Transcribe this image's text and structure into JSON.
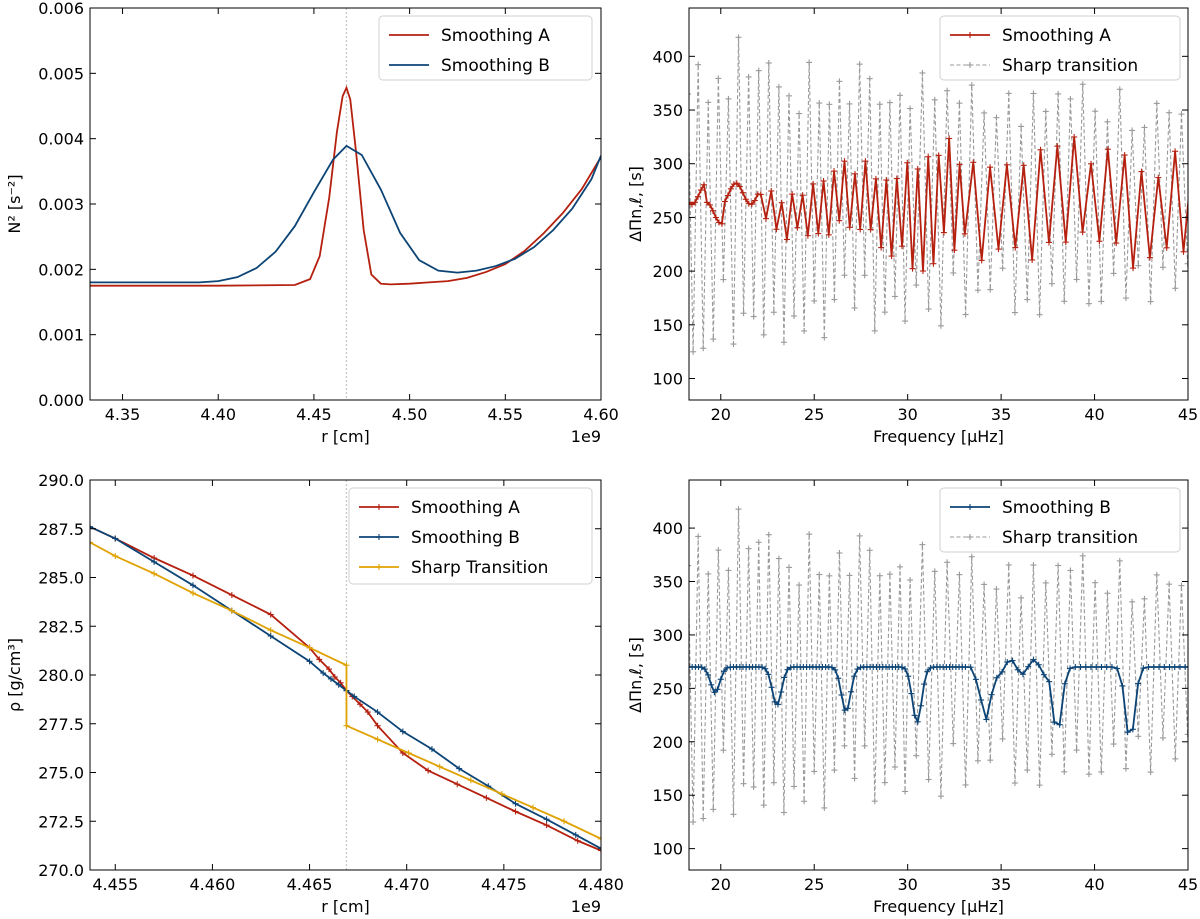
{
  "chart_data": [
    {
      "id": "p1",
      "type": "line",
      "xlabel": "r [cm]",
      "ylabel": "N² [s⁻²]",
      "x_offset_label": "1e9",
      "xlim": [
        4.333,
        4.6
      ],
      "ylim": [
        0,
        0.006
      ],
      "xticks": [
        "4.35",
        "4.40",
        "4.45",
        "4.50",
        "4.55",
        "4.60"
      ],
      "xtick_values": [
        4.35,
        4.4,
        4.45,
        4.5,
        4.55,
        4.6
      ],
      "yticks": [
        "0.000",
        "0.001",
        "0.002",
        "0.003",
        "0.004",
        "0.005",
        "0.006"
      ],
      "ytick_values": [
        0,
        0.001,
        0.002,
        0.003,
        0.004,
        0.005,
        0.006
      ],
      "vline": 4.467,
      "legend": "top-right",
      "series": [
        {
          "name": "Smoothing A",
          "color": "#b5200f",
          "markers": false,
          "x": [
            4.333,
            4.4,
            4.44,
            4.448,
            4.453,
            4.458,
            4.462,
            4.465,
            4.467,
            4.469,
            4.472,
            4.476,
            4.48,
            4.485,
            4.49,
            4.5,
            4.51,
            4.52,
            4.53,
            4.54,
            4.55,
            4.56,
            4.57,
            4.58,
            4.59,
            4.6
          ],
          "y": [
            0.00175,
            0.00175,
            0.00176,
            0.00185,
            0.0022,
            0.0031,
            0.0041,
            0.00465,
            0.00478,
            0.0046,
            0.0038,
            0.0026,
            0.00192,
            0.00178,
            0.00177,
            0.00178,
            0.0018,
            0.00182,
            0.00187,
            0.00196,
            0.00208,
            0.00228,
            0.00255,
            0.00286,
            0.00323,
            0.00372
          ]
        },
        {
          "name": "Smoothing B",
          "color": "#0c4476",
          "markers": false,
          "x": [
            4.333,
            4.39,
            4.4,
            4.41,
            4.42,
            4.43,
            4.44,
            4.45,
            4.46,
            4.467,
            4.475,
            4.485,
            4.495,
            4.505,
            4.515,
            4.525,
            4.535,
            4.545,
            4.555,
            4.565,
            4.575,
            4.585,
            4.595,
            4.6
          ],
          "y": [
            0.0018,
            0.0018,
            0.00182,
            0.00188,
            0.00202,
            0.00227,
            0.00266,
            0.00318,
            0.00368,
            0.00389,
            0.00375,
            0.00322,
            0.00256,
            0.00214,
            0.00198,
            0.00195,
            0.00198,
            0.00205,
            0.00216,
            0.00234,
            0.0026,
            0.00293,
            0.00338,
            0.00374
          ]
        }
      ]
    },
    {
      "id": "p2",
      "type": "line",
      "xlabel": "Frequency [μHz]",
      "ylabel": "ΔΠn,ℓ, [s]",
      "xlim": [
        18.3,
        45
      ],
      "ylim": [
        80,
        445
      ],
      "xticks": [
        "20",
        "25",
        "30",
        "35",
        "40",
        "45"
      ],
      "xtick_values": [
        20,
        25,
        30,
        35,
        40,
        45
      ],
      "yticks": [
        "100",
        "150",
        "200",
        "250",
        "300",
        "350",
        "400"
      ],
      "ytick_values": [
        100,
        150,
        200,
        250,
        300,
        350,
        400
      ],
      "legend": "top-right",
      "series": [
        {
          "name": "Smoothing A",
          "color": "#b5200f",
          "markers": true,
          "style": "solid",
          "model": "A"
        },
        {
          "name": "Sharp transition",
          "color": "#999999",
          "markers": true,
          "style": "dashed",
          "model": "sharp"
        }
      ]
    },
    {
      "id": "p3",
      "type": "line",
      "xlabel": "r [cm]",
      "ylabel": "ρ [g/cm³]",
      "x_offset_label": "1e9",
      "xlim": [
        4.4537,
        4.48
      ],
      "ylim": [
        270,
        290
      ],
      "xticks": [
        "4.455",
        "4.460",
        "4.465",
        "4.470",
        "4.475",
        "4.480"
      ],
      "xtick_values": [
        4.455,
        4.46,
        4.465,
        4.47,
        4.475,
        4.48
      ],
      "yticks": [
        "270.0",
        "272.5",
        "275.0",
        "277.5",
        "280.0",
        "282.5",
        "285.0",
        "287.5",
        "290.0"
      ],
      "ytick_values": [
        270,
        272.5,
        275,
        277.5,
        280,
        282.5,
        285,
        287.5,
        290
      ],
      "vline": 4.4669,
      "legend": "top-right",
      "series": [
        {
          "name": "Smoothing A",
          "color": "#b5200f",
          "markers": true,
          "x": [
            4.4537,
            4.455,
            4.457,
            4.459,
            4.461,
            4.463,
            4.465,
            4.4655,
            4.466,
            4.4663,
            4.4666,
            4.4669,
            4.4672,
            4.4676,
            4.468,
            4.4685,
            4.4698,
            4.4711,
            4.4726,
            4.4741,
            4.4756,
            4.4772,
            4.4788,
            4.48
          ],
          "y": [
            287.6,
            287.0,
            286.0,
            285.1,
            284.1,
            283.1,
            281.4,
            280.8,
            280.3,
            279.9,
            279.6,
            279.2,
            278.9,
            278.5,
            278.1,
            277.4,
            276.0,
            275.1,
            274.4,
            273.7,
            273.0,
            272.3,
            271.5,
            271.0
          ]
        },
        {
          "name": "Smoothing B",
          "color": "#0c4476",
          "markers": true,
          "x": [
            4.4537,
            4.455,
            4.457,
            4.459,
            4.461,
            4.463,
            4.465,
            4.4657,
            4.4661,
            4.4665,
            4.4669,
            4.4673,
            4.4685,
            4.4698,
            4.4713,
            4.4727,
            4.4742,
            4.4756,
            4.4772,
            4.4787,
            4.48
          ],
          "y": [
            287.6,
            287.0,
            285.8,
            284.6,
            283.3,
            282.0,
            280.7,
            280.1,
            279.8,
            279.5,
            279.2,
            278.9,
            278.1,
            277.1,
            276.2,
            275.2,
            274.3,
            273.4,
            272.6,
            271.8,
            271.1
          ]
        },
        {
          "name": "Sharp Transition",
          "color": "#e0a200",
          "markers": true,
          "x": [
            4.4537,
            4.455,
            4.457,
            4.459,
            4.461,
            4.463,
            4.465,
            4.4669,
            4.4669,
            4.4685,
            4.4701,
            4.4717,
            4.4733,
            4.4749,
            4.4765,
            4.4781,
            4.48
          ],
          "y": [
            286.8,
            286.1,
            285.2,
            284.2,
            283.3,
            282.3,
            281.4,
            280.5,
            277.4,
            276.7,
            276.0,
            275.3,
            274.6,
            273.9,
            273.2,
            272.5,
            271.6
          ]
        }
      ]
    },
    {
      "id": "p4",
      "type": "line",
      "xlabel": "Frequency [μHz]",
      "ylabel": "ΔΠn,ℓ, [s]",
      "xlim": [
        18.3,
        45
      ],
      "ylim": [
        80,
        445
      ],
      "xticks": [
        "20",
        "25",
        "30",
        "35",
        "40",
        "45"
      ],
      "xtick_values": [
        20,
        25,
        30,
        35,
        40,
        45
      ],
      "yticks": [
        "100",
        "150",
        "200",
        "250",
        "300",
        "350",
        "400"
      ],
      "ytick_values": [
        100,
        150,
        200,
        250,
        300,
        350,
        400
      ],
      "legend": "top-right",
      "series": [
        {
          "name": "Smoothing B",
          "color": "#0c4476",
          "markers": true,
          "style": "solid",
          "model": "B"
        },
        {
          "name": "Sharp transition",
          "color": "#999999",
          "markers": true,
          "style": "dashed",
          "model": "sharp"
        }
      ]
    }
  ]
}
